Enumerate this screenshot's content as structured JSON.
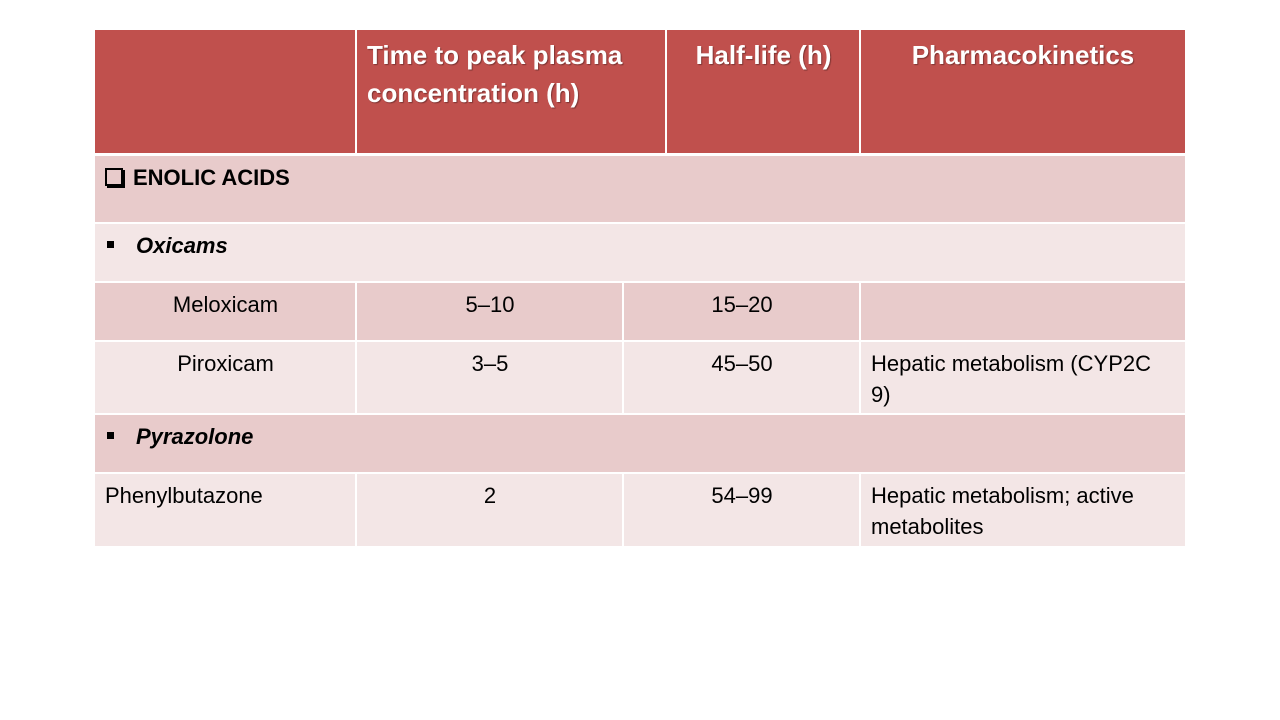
{
  "table": {
    "headers": {
      "col1": "",
      "col2": "Time to peak plasma concentration (h)",
      "col3": "Half-life (h)",
      "col4": "Pharmacokinetics"
    },
    "section": {
      "title": "ENOLIC ACIDS",
      "icon": "checkbox-square-icon"
    },
    "groups": [
      {
        "label": "Oxicams",
        "icon": "square-bullet-icon"
      },
      {
        "label": "Pyrazolone",
        "icon": "square-bullet-icon"
      }
    ],
    "rows": [
      {
        "drug": "Meloxicam",
        "tpeak": "5–10",
        "halflife": "15–20",
        "pk": ""
      },
      {
        "drug": "Piroxicam",
        "tpeak": "3–5",
        "halflife": "45–50",
        "pk": "Hepatic metabolism (CYP2C 9)"
      },
      {
        "drug": "Phenylbutazone",
        "tpeak": "2",
        "halflife": "54–99",
        "pk": "Hepatic metabolism; active metabolites"
      }
    ]
  },
  "colors": {
    "header_bg": "#c0504d",
    "band_dark": "#e8cbcb",
    "band_light": "#f3e6e6"
  }
}
